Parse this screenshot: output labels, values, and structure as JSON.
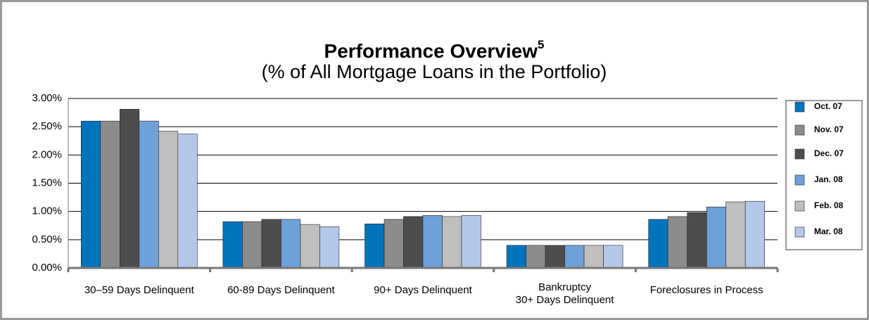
{
  "chart_data": {
    "type": "bar",
    "title": "Performance Overview",
    "title_note": "5",
    "subtitle": "(% of All Mortgage Loans in the Portfolio)",
    "categories": [
      "30–59 Days Delinquent",
      "60-89 Days Delinquent",
      "90+ Days Delinquent",
      "Bankruptcy\n30+ Days Delinquent",
      "Foreclosures in Process"
    ],
    "series": [
      {
        "name": "Oct. 07",
        "color": "#0073bd",
        "values": [
          2.6,
          0.82,
          0.78,
          0.4,
          0.86
        ]
      },
      {
        "name": "Nov. 07",
        "color": "#8c8c8c",
        "values": [
          2.6,
          0.82,
          0.86,
          0.4,
          0.91
        ]
      },
      {
        "name": "Dec. 07",
        "color": "#4d4d4d",
        "values": [
          2.81,
          0.86,
          0.91,
          0.4,
          0.98
        ]
      },
      {
        "name": "Jan. 08",
        "color": "#6fa0d8",
        "values": [
          2.6,
          0.86,
          0.93,
          0.4,
          1.08
        ]
      },
      {
        "name": "Feb. 08",
        "color": "#bfbfbf",
        "values": [
          2.42,
          0.77,
          0.91,
          0.4,
          1.17
        ]
      },
      {
        "name": "Mar. 08",
        "color": "#b5c8ea",
        "values": [
          2.37,
          0.73,
          0.93,
          0.4,
          1.18
        ]
      }
    ],
    "ylim": [
      0,
      3
    ],
    "yticks": [
      {
        "value": 0,
        "label": "0.00%"
      },
      {
        "value": 0.5,
        "label": "0.50%"
      },
      {
        "value": 1,
        "label": "1.00%"
      },
      {
        "value": 1.5,
        "label": "1.50%"
      },
      {
        "value": 2,
        "label": "2.00%"
      },
      {
        "value": 2.5,
        "label": "2.50%"
      },
      {
        "value": 3,
        "label": "3.00%"
      }
    ],
    "grid": true,
    "legend": "right"
  }
}
